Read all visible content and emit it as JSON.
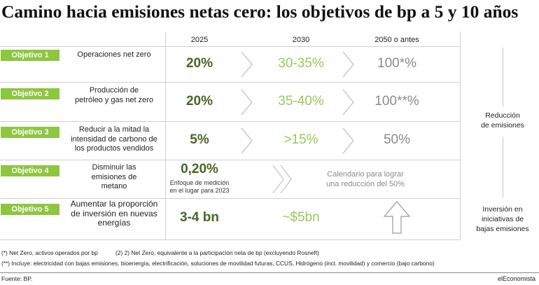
{
  "chart_data": {
    "type": "table",
    "title": "Camino hacia emisiones netas cero: los objetivos de bp a 5 y 10 años",
    "columns": [
      "2025",
      "2030",
      "2050 o antes"
    ],
    "rows": [
      {
        "objective": "Objetivo 1",
        "description": [
          "Operaciones net zero"
        ],
        "values": [
          "20%",
          "30-35%",
          "100*%"
        ]
      },
      {
        "objective": "Objetivo 2",
        "description": [
          "Producción de",
          "petróleo y gas net zero"
        ],
        "values": [
          "20%",
          "35-40%",
          "100**%"
        ]
      },
      {
        "objective": "Objetivo 3",
        "description": [
          "Reducir a la mitad la",
          "intensidad de carbono de",
          "los productos vendidos"
        ],
        "values": [
          "5%",
          ">15%",
          "50%"
        ]
      },
      {
        "objective": "Objetivo 4",
        "description": [
          "Disminuir las",
          "emisiones de",
          "metano"
        ],
        "values": [
          "0,20%"
        ],
        "value_note": [
          "Enfoque de medición",
          "en el lugar para 2023"
        ],
        "later_target": [
          "Calendario para lograr",
          "una reducción del 50%"
        ]
      },
      {
        "objective": "Objetivo 5",
        "description": [
          "Aumentar la proporción",
          "de inversión en nuevas",
          "energías"
        ],
        "values": [
          "3-4 bn",
          "~$5bn"
        ],
        "icon_2050": "arrow-up-icon"
      }
    ],
    "groups": [
      {
        "label": [
          "Reducción",
          "de emisiones"
        ]
      },
      {
        "label": [
          "Inversión en",
          "iniciativas de",
          "bajas emisiones"
        ]
      }
    ]
  },
  "footnotes": {
    "note_1": "(*) Net Zero, activos operados por bp",
    "note_2": "(2) 2) Net Zero, equivalente a la participación neta de bp (excluyendo Rosneft)",
    "note_3": "(**) Incluye: electricidad con bajas emisiones, bioenergía, electrificación, soluciones de movilidad futuras, CCUS, Hidrógeno (incl. movilidad) y comercio (bajo carbono)"
  },
  "footer": {
    "source": "Fuente: BP.",
    "brand": "elEconomista"
  },
  "icons": {
    "step": "chevron-right-icon",
    "step_double": "double-chevron-right-icon"
  },
  "colors": {
    "badge": "#8dc63f",
    "value_2025": "#4a6526",
    "value_2030": "#97c85c",
    "value_2050": "#8a8a8a",
    "rules": "#cfcfcf"
  }
}
